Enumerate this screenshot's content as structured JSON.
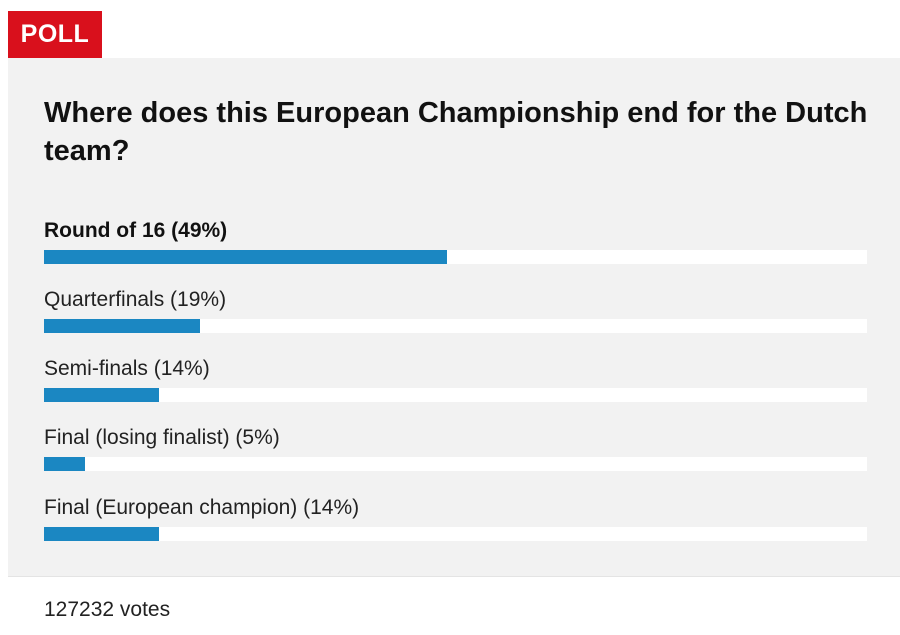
{
  "poll": {
    "badge": "POLL",
    "question": "Where does this European Championship end for the Dutch team?",
    "options": [
      {
        "label": "Round of 16 (49%)",
        "percent": 49,
        "selected": true
      },
      {
        "label": "Quarterfinals (19%)",
        "percent": 19,
        "selected": false
      },
      {
        "label": "Semi-finals (14%)",
        "percent": 14,
        "selected": false
      },
      {
        "label": "Final (losing finalist) (5%)",
        "percent": 5,
        "selected": false
      },
      {
        "label": "Final (European champion) (14%)",
        "percent": 14,
        "selected": false
      }
    ],
    "votes": "127232 votes"
  },
  "colors": {
    "badge_bg": "#d9101c",
    "bar_fill": "#1b87c2",
    "panel_bg": "#f2f2f2",
    "bar_track": "#ffffff"
  }
}
